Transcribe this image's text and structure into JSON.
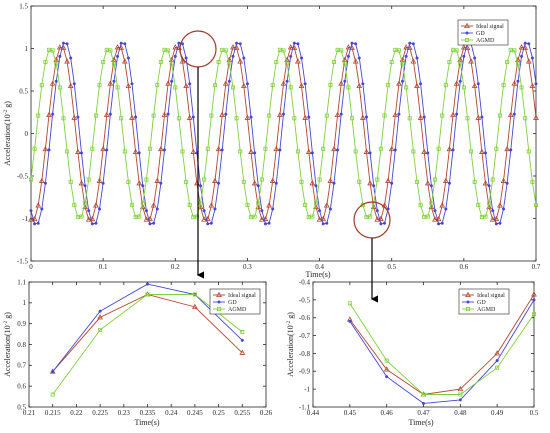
{
  "colors": {
    "ideal": "#b5452f",
    "gd": "#4646d8",
    "agmd": "#7fd13b",
    "highlight": "#a03a2a",
    "arrow": "#000000"
  },
  "legend_labels": [
    "Ideal signal",
    "GD",
    "AGMD"
  ],
  "chart_data": [
    {
      "type": "line",
      "id": "main",
      "title": "",
      "xlabel": "Time(s)",
      "ylabel": "Acceleration(10^-2 g)",
      "xlim": [
        0,
        0.7
      ],
      "ylim": [
        -1.5,
        1.5
      ],
      "xticks": [
        "0",
        "0.1",
        "0.2",
        "0.3",
        "0.4",
        "0.5",
        "0.6",
        "0.7"
      ],
      "yticks": [
        "-1.5",
        "-1",
        "-0.5",
        "0",
        "0.5",
        "1",
        "1.5"
      ],
      "legend": "top-right",
      "series": [
        {
          "name": "Ideal signal",
          "freq": 12.5,
          "amp": 1.03,
          "phase": 0.0,
          "step": 0.005,
          "marker": "triangle"
        },
        {
          "name": "GD",
          "freq": 12.5,
          "amp": 1.08,
          "phase": 0.005,
          "step": 0.005,
          "marker": "dot"
        },
        {
          "name": "AGMD",
          "freq": 12.5,
          "amp": 1.0,
          "phase": -0.015,
          "step": 0.005,
          "marker": "square"
        }
      ]
    },
    {
      "type": "line",
      "id": "zoom1",
      "title": "",
      "xlabel": "Time(s)",
      "ylabel": "Acceleration(10^-2 g)",
      "xlim": [
        0.21,
        0.26
      ],
      "ylim": [
        0.5,
        1.1
      ],
      "xticks": [
        "0.21",
        "0.215",
        "0.22",
        "0.225",
        "0.23",
        "0.235",
        "0.24",
        "0.245",
        "0.25",
        "0.255",
        "0.26"
      ],
      "yticks": [
        "0.5",
        "0.6",
        "0.7",
        "0.8",
        "0.9",
        "1",
        "1.1"
      ],
      "legend": "top-right",
      "x": [
        0.215,
        0.225,
        0.235,
        0.245,
        0.255
      ],
      "series": [
        {
          "name": "Ideal signal",
          "values": [
            0.67,
            0.93,
            1.04,
            0.98,
            0.76
          ],
          "marker": "triangle"
        },
        {
          "name": "GD",
          "values": [
            0.67,
            0.96,
            1.09,
            1.04,
            0.82
          ],
          "marker": "dot"
        },
        {
          "name": "AGMD",
          "values": [
            0.56,
            0.87,
            1.04,
            1.04,
            0.86
          ],
          "marker": "square"
        }
      ]
    },
    {
      "type": "line",
      "id": "zoom2",
      "title": "",
      "xlabel": "Time(s)",
      "ylabel": "Acceleration(10^-2 g)",
      "xlim": [
        0.44,
        0.5
      ],
      "ylim": [
        -1.1,
        -0.4
      ],
      "xticks": [
        "0.44",
        "0.45",
        "0.46",
        "0.47",
        "0.48",
        "0.49",
        "0.5"
      ],
      "yticks": [
        "-1.1",
        "-1",
        "-0.9",
        "-0.8",
        "-0.7",
        "-0.6",
        "-0.5",
        "-0.4"
      ],
      "legend": "top-right",
      "x": [
        0.45,
        0.46,
        0.47,
        0.48,
        0.49,
        0.5
      ],
      "series": [
        {
          "name": "Ideal signal",
          "values": [
            -0.61,
            -0.89,
            -1.03,
            -1.0,
            -0.8,
            -0.47
          ],
          "marker": "triangle"
        },
        {
          "name": "GD",
          "values": [
            -0.62,
            -0.93,
            -1.08,
            -1.06,
            -0.84,
            -0.5
          ],
          "marker": "dot"
        },
        {
          "name": "AGMD",
          "values": [
            -0.52,
            -0.84,
            -1.03,
            -1.03,
            -0.88,
            -0.58
          ],
          "marker": "square"
        }
      ]
    }
  ]
}
